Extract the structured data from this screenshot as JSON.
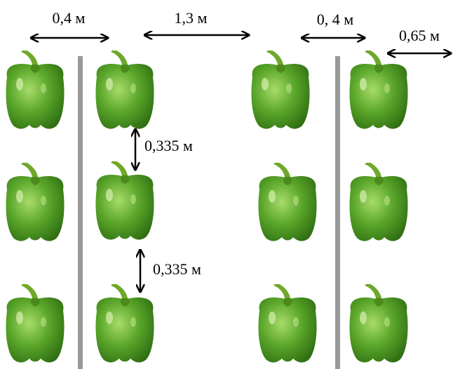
{
  "dimensions": [
    "0,4 м",
    "1,3 м",
    "0, 4 м",
    "0,65 м",
    "0,335 м",
    "0,335 м"
  ]
}
